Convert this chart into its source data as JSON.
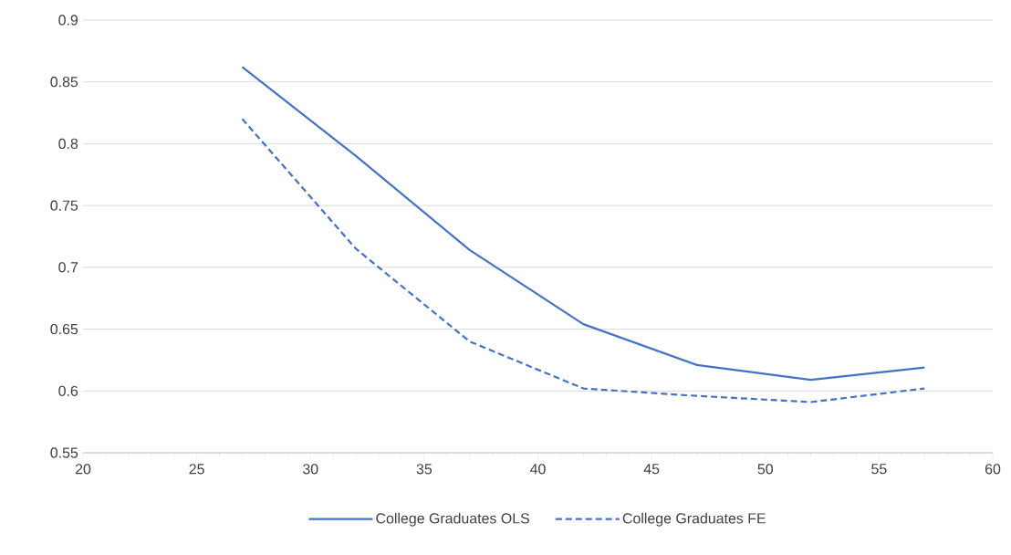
{
  "chart_data": {
    "type": "line",
    "x": [
      27,
      32,
      37,
      42,
      47,
      52,
      57
    ],
    "series": [
      {
        "name": "College Graduates OLS",
        "color": "#4472c4",
        "line_style": "solid",
        "values": [
          0.862,
          0.79,
          0.714,
          0.654,
          0.621,
          0.609,
          0.619
        ]
      },
      {
        "name": "College Graduates FE",
        "color": "#4472c4",
        "line_style": "dashed",
        "values": [
          0.82,
          0.715,
          0.64,
          0.602,
          0.596,
          0.591,
          0.602
        ]
      }
    ],
    "xlim": [
      20,
      60
    ],
    "xticks": [
      20,
      25,
      30,
      35,
      40,
      45,
      50,
      55,
      60
    ],
    "ylim": [
      0.55,
      0.9
    ],
    "yticks": [
      0.55,
      0.6,
      0.65,
      0.7,
      0.75,
      0.8,
      0.85,
      0.9
    ],
    "grid": "y",
    "legend": "bottom",
    "marker": "none"
  }
}
